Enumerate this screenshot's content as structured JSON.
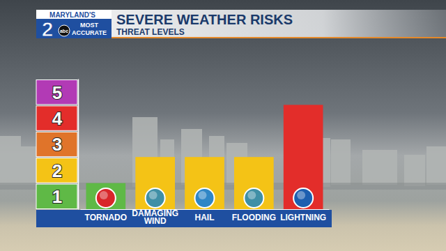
{
  "chart_data": {
    "type": "bar",
    "title": "SEVERE WEATHER RISKS",
    "subtitle": "THREAT LEVELS",
    "annotations": [
      "MARYLAND'S",
      "2",
      "abc",
      "MOST",
      "ACCURATE"
    ],
    "categories": [
      "TORNADO",
      "DAMAGING WIND",
      "HAIL",
      "FLOODING",
      "LIGHTNING"
    ],
    "values": [
      1,
      2,
      2,
      2,
      4
    ],
    "colors": [
      "#5fb946",
      "#f4c316",
      "#f4c316",
      "#f4c316",
      "#e32d2a"
    ],
    "ylim": [
      0,
      5
    ],
    "yticks": [
      1,
      2,
      3,
      4,
      5
    ],
    "grid": false
  }
}
